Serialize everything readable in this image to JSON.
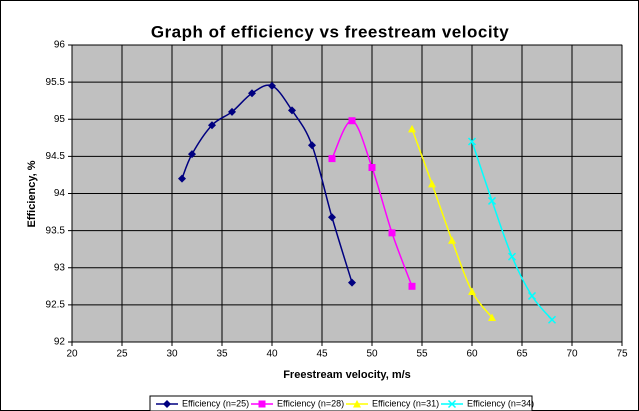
{
  "chart_data": {
    "type": "line",
    "title": "Graph of efficiency vs freestream velocity",
    "x_label": "Freestream velocity, m/s",
    "y_label": "Efficiency, %",
    "xlim": [
      20,
      75
    ],
    "xticks": [
      20,
      25,
      30,
      35,
      40,
      45,
      50,
      55,
      60,
      65,
      70,
      75
    ],
    "ylim": [
      92,
      96
    ],
    "yticks": [
      92,
      92.5,
      93,
      93.5,
      94,
      94.5,
      95,
      95.5,
      96
    ],
    "grid": true,
    "legend": "bottom",
    "series": [
      {
        "name": "Efficiency (n=25)",
        "color": "#000080",
        "marker": "diamond",
        "x": [
          31,
          32,
          34,
          36,
          38,
          40,
          42,
          44,
          46,
          48
        ],
        "values": [
          94.2,
          94.53,
          94.92,
          95.1,
          95.35,
          95.45,
          95.12,
          94.65,
          93.68,
          92.8
        ]
      },
      {
        "name": "Efficiency (n=28)",
        "color": "#ff00ff",
        "marker": "square",
        "x": [
          46,
          48,
          50,
          52,
          54
        ],
        "values": [
          94.47,
          94.98,
          94.35,
          93.47,
          92.75
        ]
      },
      {
        "name": "Efficiency (n=31)",
        "color": "#ffff00",
        "marker": "triangle",
        "x": [
          54,
          56,
          58,
          60,
          62
        ],
        "values": [
          94.87,
          94.13,
          93.37,
          92.68,
          92.33
        ]
      },
      {
        "name": "Efficiency (n=34)",
        "color": "#00ffff",
        "marker": "x",
        "x": [
          60,
          62,
          64,
          66,
          68
        ],
        "values": [
          94.7,
          93.9,
          93.15,
          92.62,
          92.3
        ]
      }
    ]
  }
}
